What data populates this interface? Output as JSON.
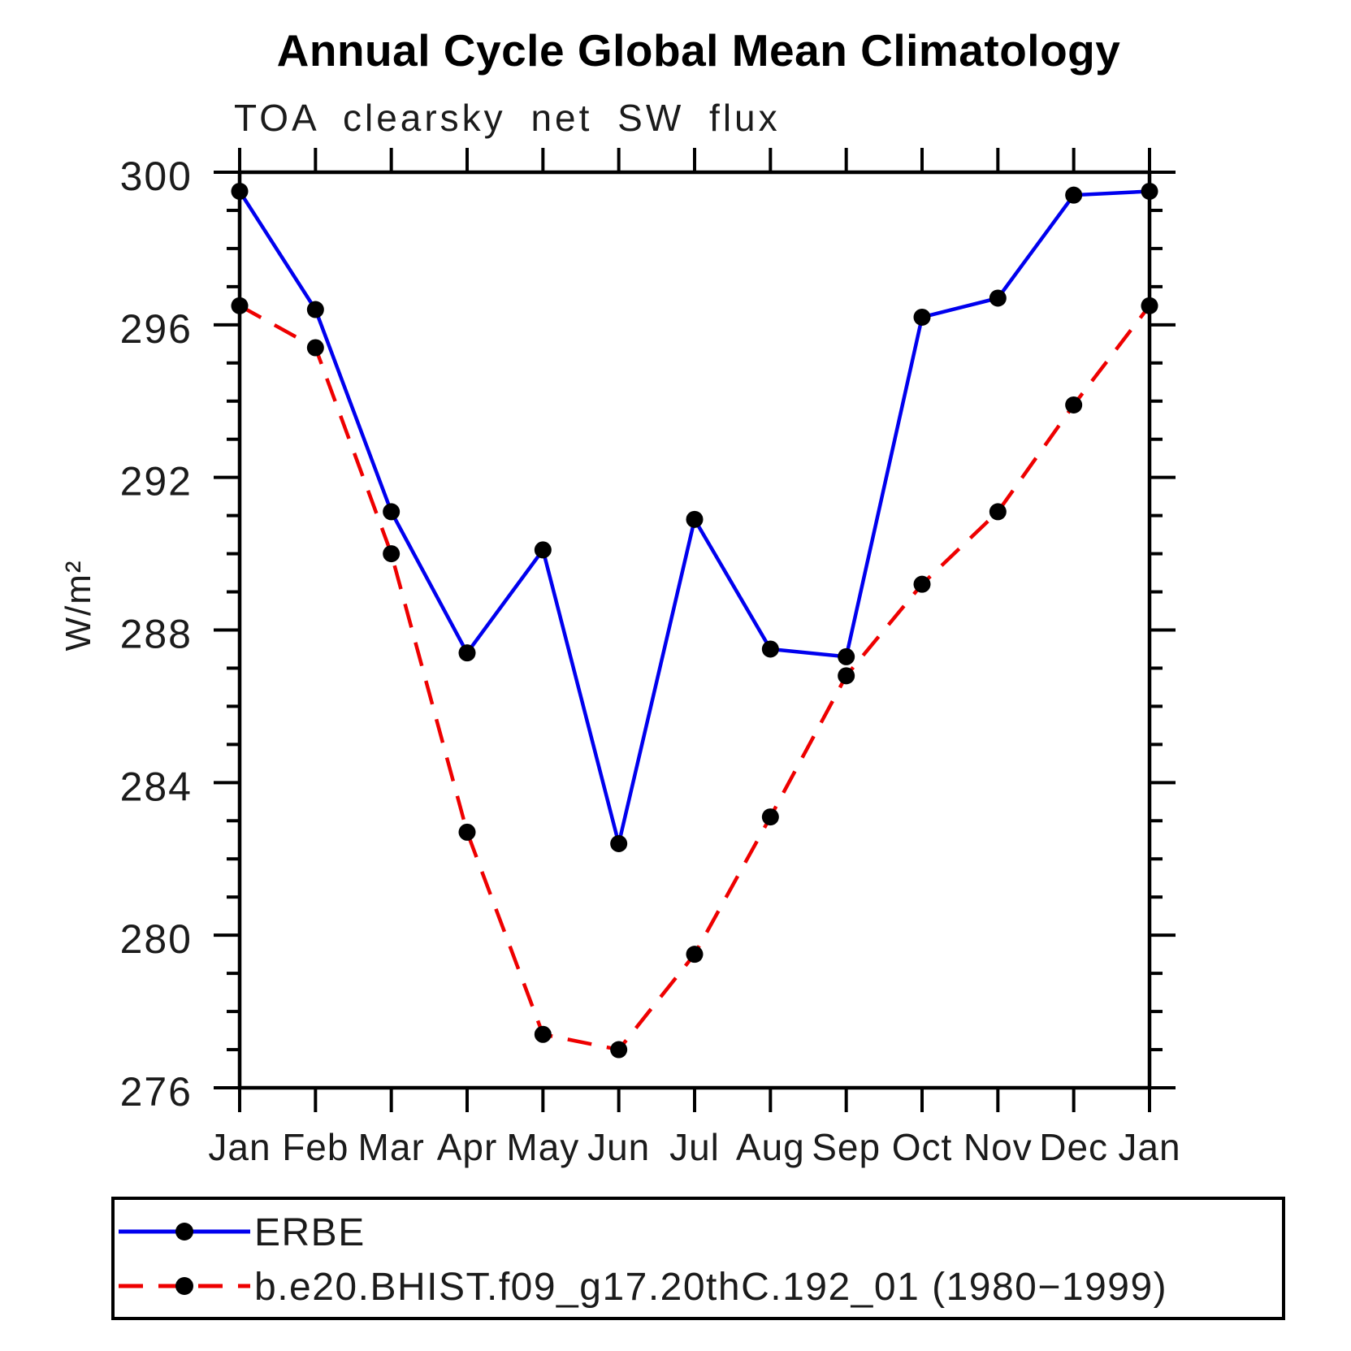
{
  "chart_data": {
    "type": "line",
    "title": "Annual Cycle Global Mean Climatology",
    "subtitle": "TOA clearsky net SW flux",
    "ylabel": "W/m²",
    "xlabel": "",
    "categories": [
      "Jan",
      "Feb",
      "Mar",
      "Apr",
      "May",
      "Jun",
      "Jul",
      "Aug",
      "Sep",
      "Oct",
      "Nov",
      "Dec",
      "Jan"
    ],
    "series": [
      {
        "name": "ERBE",
        "color": "#0000ee",
        "line_style": "solid",
        "marker": "filled-circle",
        "marker_color": "#000000",
        "values": [
          299.5,
          296.4,
          291.1,
          287.4,
          290.1,
          282.4,
          290.9,
          287.5,
          287.3,
          296.2,
          296.7,
          299.4,
          299.5
        ]
      },
      {
        "name": "b.e20.BHIST.f09_g17.20thC.192_01 (1980−1999)",
        "color": "#ee0000",
        "line_style": "dashed",
        "marker": "filled-circle",
        "marker_color": "#000000",
        "values": [
          296.5,
          295.4,
          290.0,
          282.7,
          277.4,
          277.0,
          279.5,
          283.1,
          286.8,
          289.2,
          291.1,
          293.9,
          296.5
        ]
      }
    ],
    "ylim": [
      276,
      300
    ],
    "yticks_major": [
      276,
      280,
      284,
      288,
      292,
      296,
      300
    ],
    "ytick_minor_step": 1,
    "grid": false,
    "axis_color": "#000000",
    "legend_position": "bottom"
  }
}
